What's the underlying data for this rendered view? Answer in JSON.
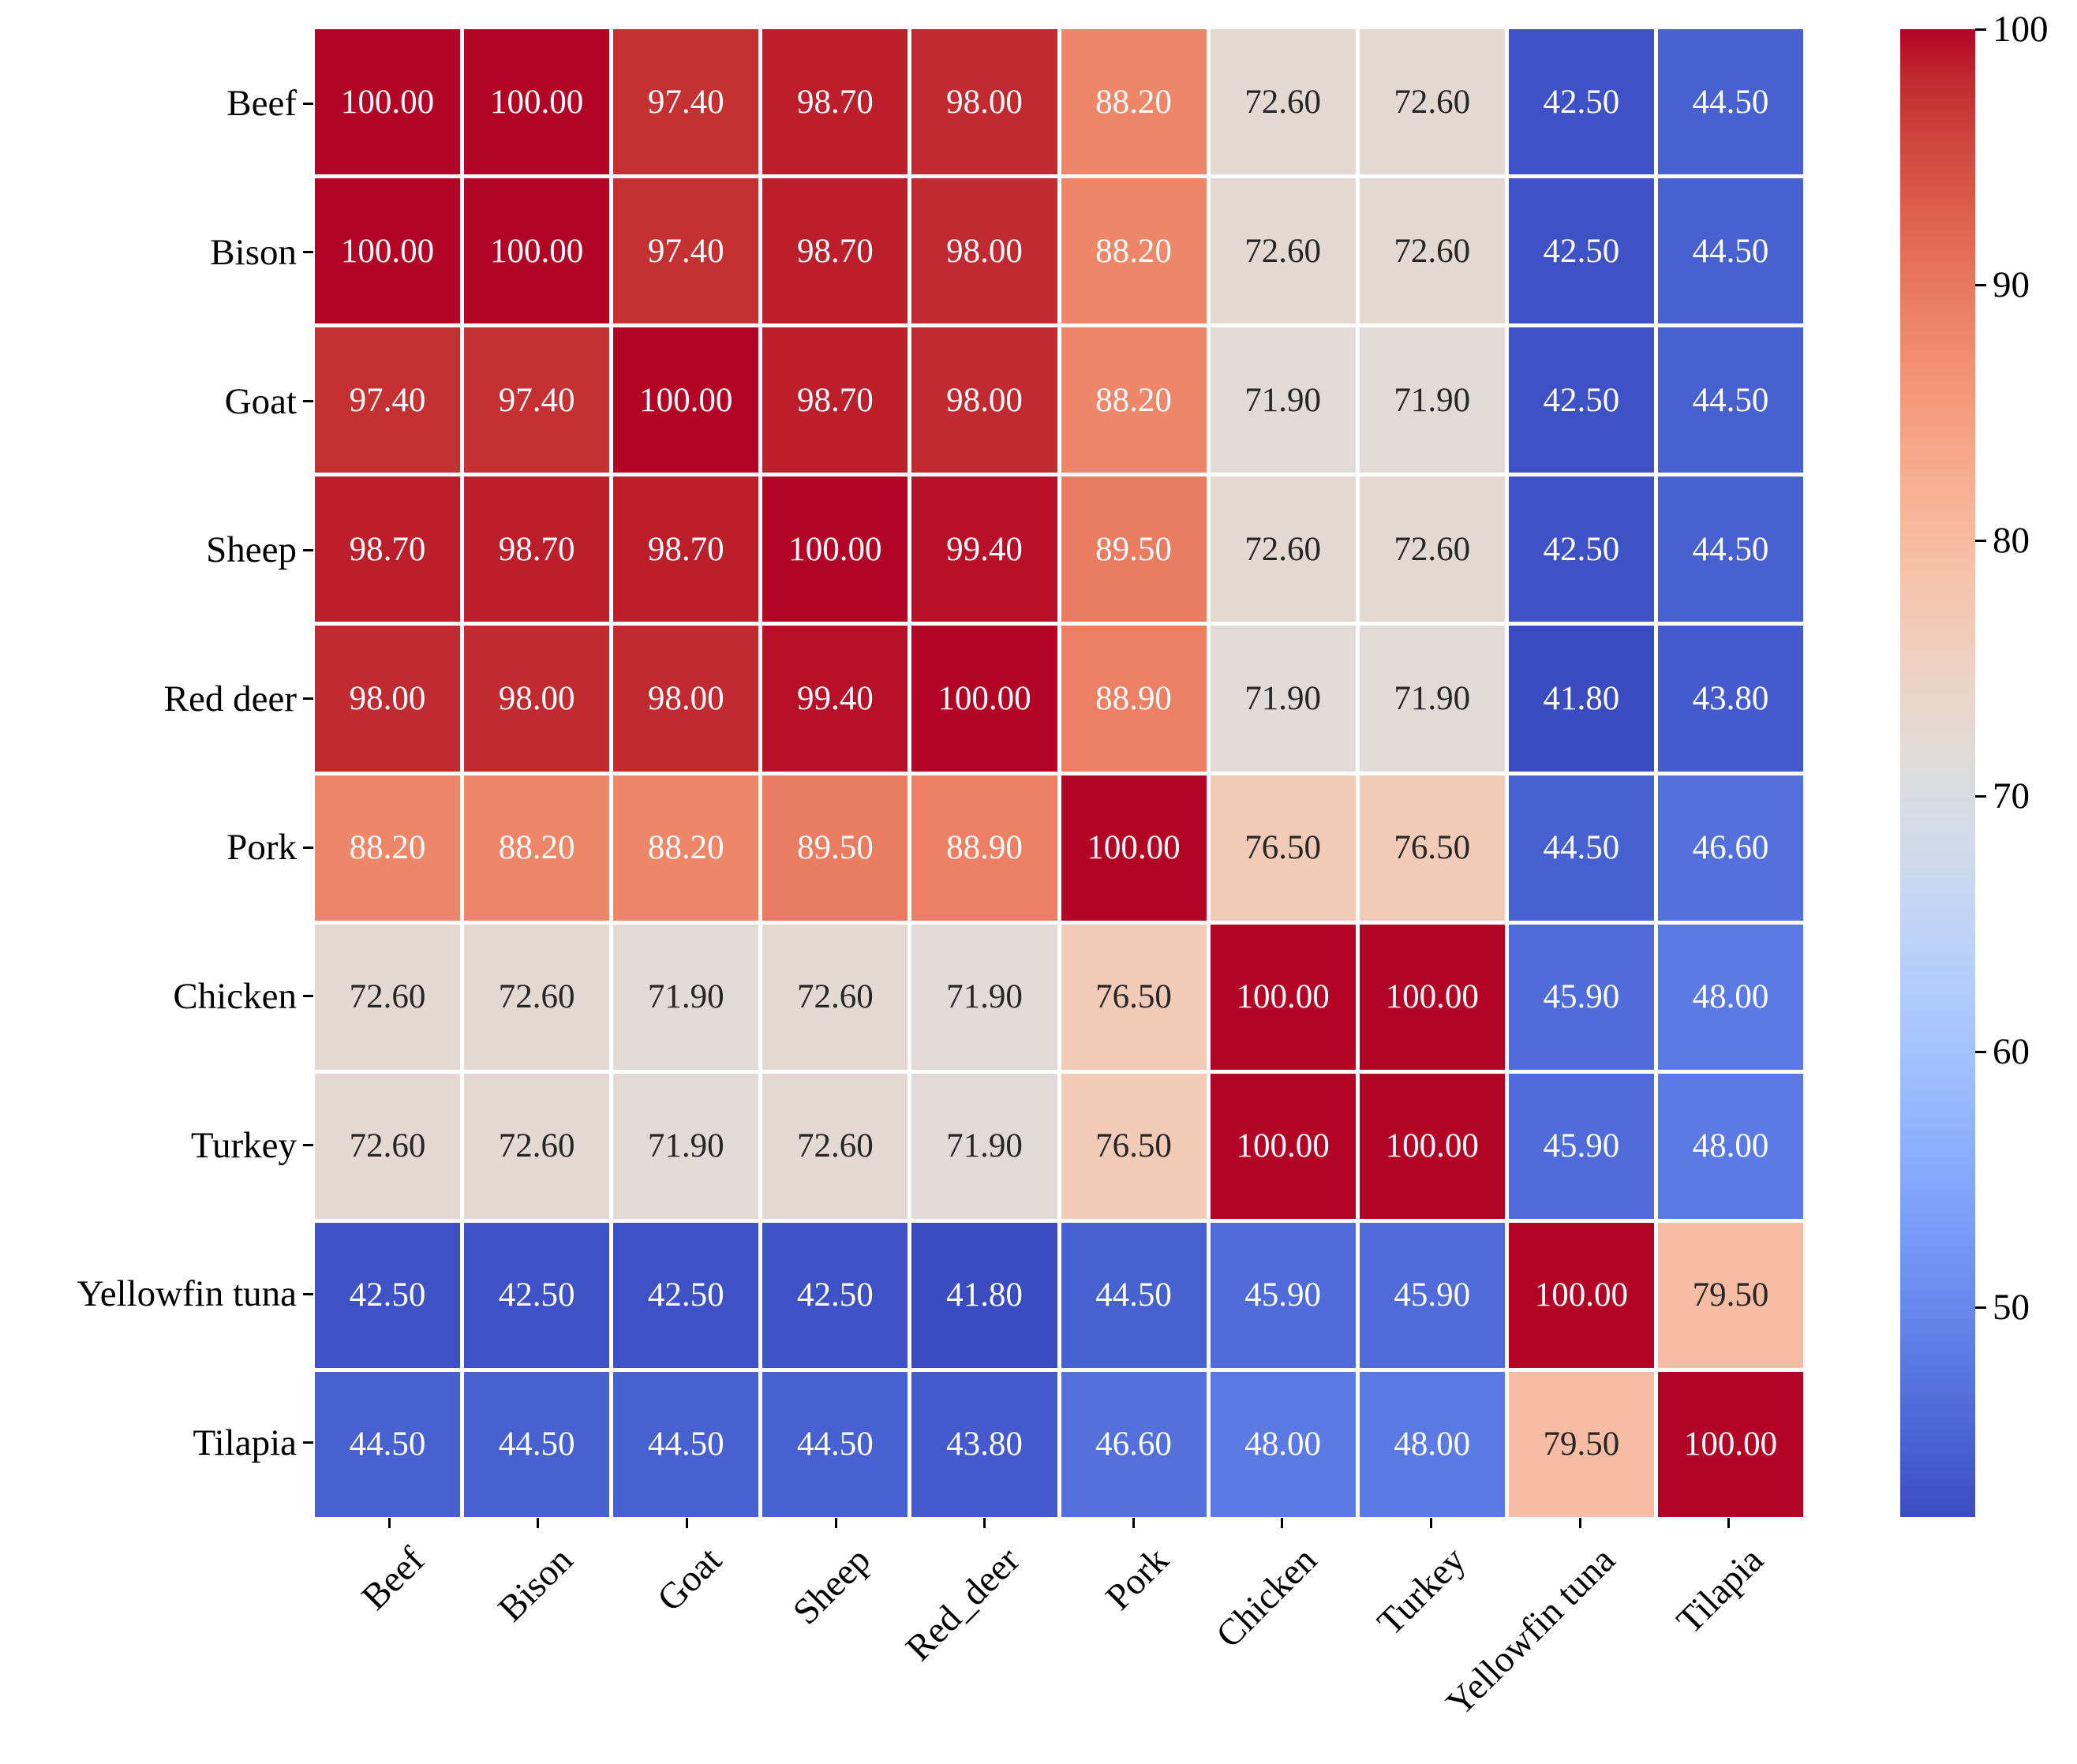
{
  "chart_data": {
    "type": "heatmap",
    "title": "",
    "xlabel": "",
    "ylabel": "",
    "row_labels": [
      "Beef",
      "Bison",
      "Goat",
      "Sheep",
      "Red deer",
      "Pork",
      "Chicken",
      "Turkey",
      "Yellowfin tuna",
      "Tilapia"
    ],
    "col_labels": [
      "Beef",
      "Bison",
      "Goat",
      "Sheep",
      "Red_deer",
      "Pork",
      "Chicken",
      "Turkey",
      "Yellowfin tuna",
      "Tilapia"
    ],
    "values": [
      [
        100.0,
        100.0,
        97.4,
        98.7,
        98.0,
        88.2,
        72.6,
        72.6,
        42.5,
        44.5
      ],
      [
        100.0,
        100.0,
        97.4,
        98.7,
        98.0,
        88.2,
        72.6,
        72.6,
        42.5,
        44.5
      ],
      [
        97.4,
        97.4,
        100.0,
        98.7,
        98.0,
        88.2,
        71.9,
        71.9,
        42.5,
        44.5
      ],
      [
        98.7,
        98.7,
        98.7,
        100.0,
        99.4,
        89.5,
        72.6,
        72.6,
        42.5,
        44.5
      ],
      [
        98.0,
        98.0,
        98.0,
        99.4,
        100.0,
        88.9,
        71.9,
        71.9,
        41.8,
        43.8
      ],
      [
        88.2,
        88.2,
        88.2,
        89.5,
        88.9,
        100.0,
        76.5,
        76.5,
        44.5,
        46.6
      ],
      [
        72.6,
        72.6,
        71.9,
        72.6,
        71.9,
        76.5,
        100.0,
        100.0,
        45.9,
        48.0
      ],
      [
        72.6,
        72.6,
        71.9,
        72.6,
        71.9,
        76.5,
        100.0,
        100.0,
        45.9,
        48.0
      ],
      [
        42.5,
        42.5,
        42.5,
        42.5,
        41.8,
        44.5,
        45.9,
        45.9,
        100.0,
        79.5
      ],
      [
        44.5,
        44.5,
        44.5,
        44.5,
        43.8,
        46.6,
        48.0,
        48.0,
        79.5,
        100.0
      ]
    ],
    "annotation_decimals": 2,
    "vmin": 41.8,
    "vmax": 100,
    "colorbar_ticks": [
      100,
      90,
      80,
      70,
      60,
      50
    ],
    "colorbar_position": "right",
    "grid_on": true,
    "grid_line_color": "#ffffff",
    "colormap_name": "coolwarm",
    "colormap_stops": [
      "#3b4cc0",
      "#445acc",
      "#4d68d7",
      "#5775e1",
      "#6282ea",
      "#6c8ef1",
      "#779af7",
      "#82a5fb",
      "#8db0fe",
      "#98b9ff",
      "#a3c2ff",
      "#aec9fd",
      "#b8d0f9",
      "#c2d5f4",
      "#ccd9ee",
      "#d5dbe6",
      "#dddddd",
      "#e5d8d1",
      "#ecd3c5",
      "#f1ccb9",
      "#f5c4ad",
      "#f7bba0",
      "#f7b194",
      "#f7a687",
      "#f49a7b",
      "#f18d6f",
      "#ec7f63",
      "#e57058",
      "#de604d",
      "#d55042",
      "#cb3e38",
      "#c0282f",
      "#b40426"
    ],
    "annotation_text_light": "#ffffff",
    "annotation_text_dark": "#262626",
    "axis_text_color": "#000000",
    "tick_color": "#000000"
  }
}
